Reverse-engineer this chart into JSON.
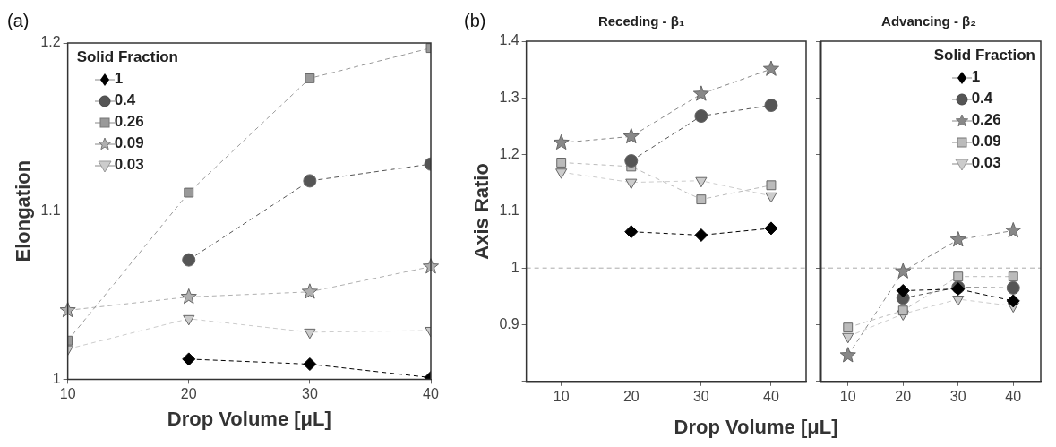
{
  "chart_data": [
    {
      "type": "line",
      "annotations": [
        "(a)"
      ],
      "xlabel": "Drop Volume [μL]",
      "ylabel": "Elongation",
      "legend_title": "Solid Fraction",
      "legend": "top left",
      "grid": false,
      "line_style": "dashed",
      "xlim": [
        10,
        40
      ],
      "xticks": [
        10,
        20,
        30,
        40
      ],
      "ylim": [
        1,
        1.2
      ],
      "yticks": [
        1,
        1.1,
        1.2
      ],
      "x": [
        10,
        20,
        30,
        40
      ],
      "series": [
        {
          "name": "1",
          "color": "#000000",
          "marker": "diamond",
          "values": [
            null,
            1.012,
            1.009,
            1.001
          ]
        },
        {
          "name": "0.4",
          "color": "#555555",
          "marker": "circle",
          "values": [
            null,
            1.071,
            1.118,
            1.128
          ]
        },
        {
          "name": "0.26",
          "color": "#999999",
          "marker": "square",
          "values": [
            1.023,
            1.111,
            1.179,
            1.197
          ]
        },
        {
          "name": "0.09",
          "color": "#b0b0b0",
          "marker": "star",
          "values": [
            1.041,
            1.049,
            1.052,
            1.067
          ]
        },
        {
          "name": "0.03",
          "color": "#cccccc",
          "marker": "triangle",
          "values": [
            1.018,
            1.036,
            1.028,
            1.029
          ]
        }
      ]
    },
    {
      "type": "line",
      "annotations": [
        "(b)"
      ],
      "title": "Receding - β₁",
      "xlabel": "Drop Volume [μL]",
      "ylabel": "Axis Ratio",
      "legend": false,
      "grid": false,
      "line_style": "dashed",
      "xlim": [
        5,
        45
      ],
      "xticks": [
        10,
        20,
        30,
        40
      ],
      "ylim": [
        0.8,
        1.4
      ],
      "yticks": [
        {
          "value": 0.8,
          "label": null
        },
        0.9,
        1,
        1.1,
        1.2,
        1.3,
        1.4
      ],
      "ref_lines": [
        {
          "axis": "y",
          "value": 1,
          "color": "#aaaaaa",
          "line_style": "dashed"
        }
      ],
      "x": [
        10,
        20,
        30,
        40
      ],
      "series": [
        {
          "color": "#000000",
          "marker": "diamond",
          "values": [
            null,
            1.064,
            1.058,
            1.07
          ]
        },
        {
          "color": "#555555",
          "marker": "circle",
          "values": [
            null,
            1.189,
            1.268,
            1.287
          ]
        },
        {
          "color": "#888888",
          "marker": "star",
          "values": [
            1.221,
            1.232,
            1.307,
            1.351
          ]
        },
        {
          "color": "#bbbbbb",
          "marker": "square",
          "values": [
            1.186,
            1.179,
            1.121,
            1.146
          ]
        },
        {
          "color": "#cccccc",
          "marker": "triangle",
          "values": [
            1.169,
            1.151,
            1.154,
            1.127
          ]
        }
      ]
    },
    {
      "type": "line",
      "title": "Advancing - β₂",
      "legend_title": "Solid Fraction",
      "legend": "top right",
      "grid": false,
      "line_style": "dashed",
      "tick_labels": "x",
      "xlim": [
        5,
        45
      ],
      "xticks": [
        10,
        20,
        30,
        40
      ],
      "ylim": [
        0.8,
        1.4
      ],
      "yticks": [
        0.8,
        0.9,
        1,
        1.1,
        1.2,
        1.3,
        1.4
      ],
      "ref_lines": [
        {
          "axis": "y",
          "value": 1,
          "color": "#aaaaaa",
          "line_style": "dashed"
        }
      ],
      "x": [
        10,
        20,
        30,
        40
      ],
      "series": [
        {
          "name": "1",
          "color": "#000000",
          "marker": "diamond",
          "values": [
            null,
            0.96,
            0.963,
            0.942
          ]
        },
        {
          "name": "0.4",
          "color": "#555555",
          "marker": "circle",
          "values": [
            null,
            0.947,
            0.966,
            0.965
          ]
        },
        {
          "name": "0.26",
          "color": "#888888",
          "marker": "star",
          "values": [
            0.846,
            0.994,
            1.05,
            1.066
          ]
        },
        {
          "name": "0.09",
          "color": "#bbbbbb",
          "marker": "square",
          "values": [
            0.895,
            0.925,
            0.985,
            0.985
          ]
        },
        {
          "name": "0.03",
          "color": "#cccccc",
          "marker": "triangle",
          "values": [
            0.879,
            0.919,
            0.945,
            0.933
          ]
        }
      ]
    }
  ]
}
